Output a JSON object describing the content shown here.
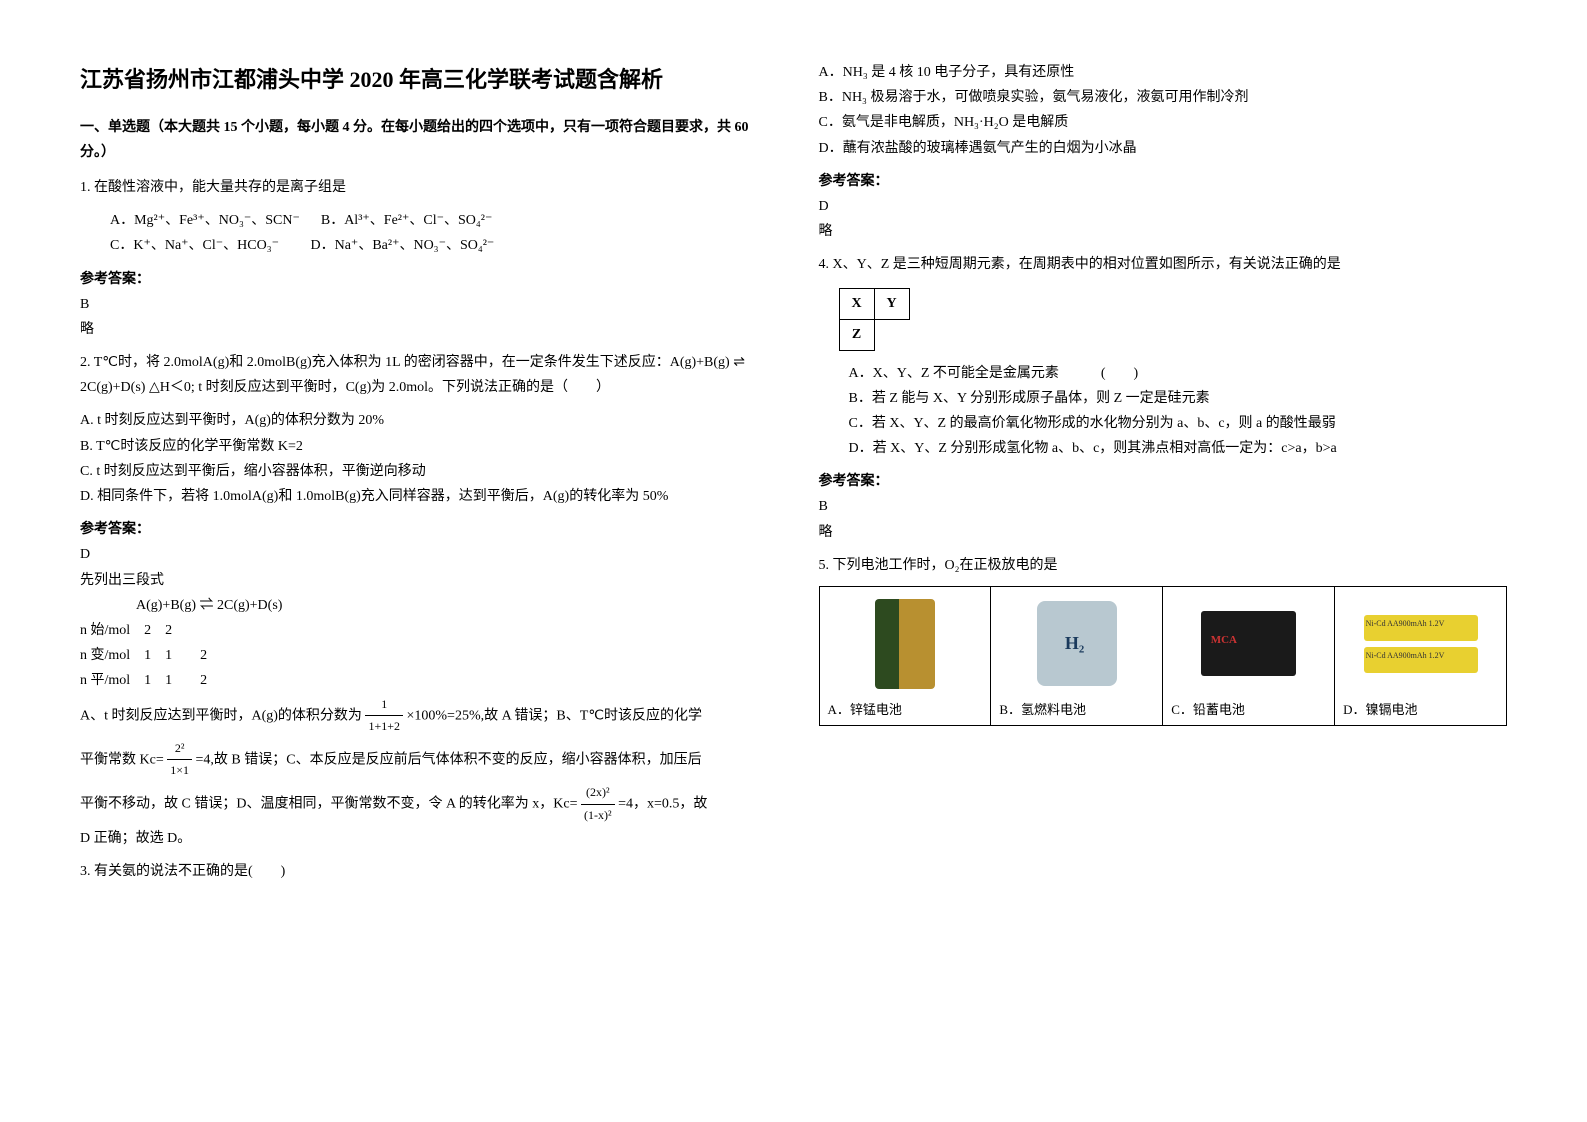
{
  "title": "江苏省扬州市江都浦头中学 2020 年高三化学联考试题含解析",
  "section1": "一、单选题（本大题共 15 个小题，每小题 4 分。在每小题给出的四个选项中，只有一项符合题目要求，共 60 分。）",
  "q1": {
    "stem": "1. 在酸性溶液中，能大量共存的是离子组是",
    "optA": "A．Mg²⁺、Fe³⁺、NO₃⁻、SCN⁻",
    "optB": "B．Al³⁺、Fe²⁺、Cl⁻、SO₄²⁻",
    "optC": "C．K⁺、Na⁺、Cl⁻、HCO₃⁻",
    "optD": "D．Na⁺、Ba²⁺、NO₃⁻、SO₄²⁻",
    "answerLabel": "参考答案：",
    "answer": "B",
    "brief": "略"
  },
  "q2": {
    "stem": "2. T℃时，将 2.0molA(g)和 2.0molB(g)充入体积为 1L 的密闭容器中，在一定条件发生下述反应：A(g)+B(g) ⇌ 2C(g)+D(s) △H＜0; t 时刻反应达到平衡时，C(g)为 2.0mol。下列说法正确的是（　　）",
    "optA": "A. t 时刻反应达到平衡时，A(g)的体积分数为 20%",
    "optB": "B. T℃时该反应的化学平衡常数 K=2",
    "optC": "C. t 时刻反应达到平衡后，缩小容器体积，平衡逆向移动",
    "optD": "D. 相同条件下，若将 1.0molA(g)和 1.0molB(g)充入同样容器，达到平衡后，A(g)的转化率为 50%",
    "answerLabel": "参考答案：",
    "answer": "D",
    "expl1": "先列出三段式",
    "expl2": "　　　　A(g)+B(g) ⇌ 2C(g)+D(s)",
    "expl3": "n 始/mol　2　2",
    "expl4": "n 变/mol　1　1　　2",
    "expl5": "n 平/mol　1　1　　2",
    "explA1": "A、t 时刻反应达到平衡时，A(g)的体积分数为",
    "explA2": "×100%=25%,故 A 错误；B、T℃时该反应的化学",
    "explB1": "平衡常数 Kc=",
    "explB2": "=4,故 B 错误；C、本反应是反应前后气体体积不变的反应，缩小容器体积，加压后",
    "explC1": "平衡不移动，故 C 错误；D、温度相同，平衡常数不变，令 A 的转化率为 x，Kc=",
    "explC2": "=4，x=0.5，故",
    "explEnd": "D 正确；故选 D。",
    "fracA_num": "1",
    "fracA_den": "1+1+2",
    "fracB_num": "2²",
    "fracB_den": "1×1",
    "fracC_num": "(2x)²",
    "fracC_den": "(1-x)²"
  },
  "q3": {
    "stem": "3. 有关氨的说法不正确的是(　　)",
    "optA": "A．NH₃ 是 4 核 10 电子分子，具有还原性",
    "optB": "B．NH₃ 极易溶于水，可做喷泉实验，氨气易液化，液氨可用作制冷剂",
    "optC": "C．氨气是非电解质，NH₃·H₂O 是电解质",
    "optD": "D．蘸有浓盐酸的玻璃棒遇氨气产生的白烟为小冰晶",
    "answerLabel": "参考答案：",
    "answer": "D",
    "brief": "略"
  },
  "q4": {
    "stem": "4. X、Y、Z 是三种短周期元素，在周期表中的相对位置如图所示，有关说法正确的是",
    "cellX": "X",
    "cellY": "Y",
    "cellZ": "Z",
    "optA": "A．X、Y、Z 不可能全是金属元素　　　(　　)",
    "optB": "B．若 Z 能与 X、Y 分别形成原子晶体，则 Z 一定是硅元素",
    "optC": "C．若 X、Y、Z 的最高价氧化物形成的水化物分别为 a、b、c，则 a 的酸性最弱",
    "optD": "D．若 X、Y、Z 分别形成氢化物 a、b、c，则其沸点相对高低一定为：c>a，b>a",
    "answerLabel": "参考答案：",
    "answer": "B",
    "brief": "略"
  },
  "q5": {
    "stem": "5. 下列电池工作时，O₂在正极放电的是",
    "labelA": "A．锌锰电池",
    "labelB": "B．氢燃料电池",
    "labelC": "C．铅蓄电池",
    "labelD": "D．镍镉电池",
    "cellD_text": "Ni-Cd AA900mAh 1.2V"
  }
}
